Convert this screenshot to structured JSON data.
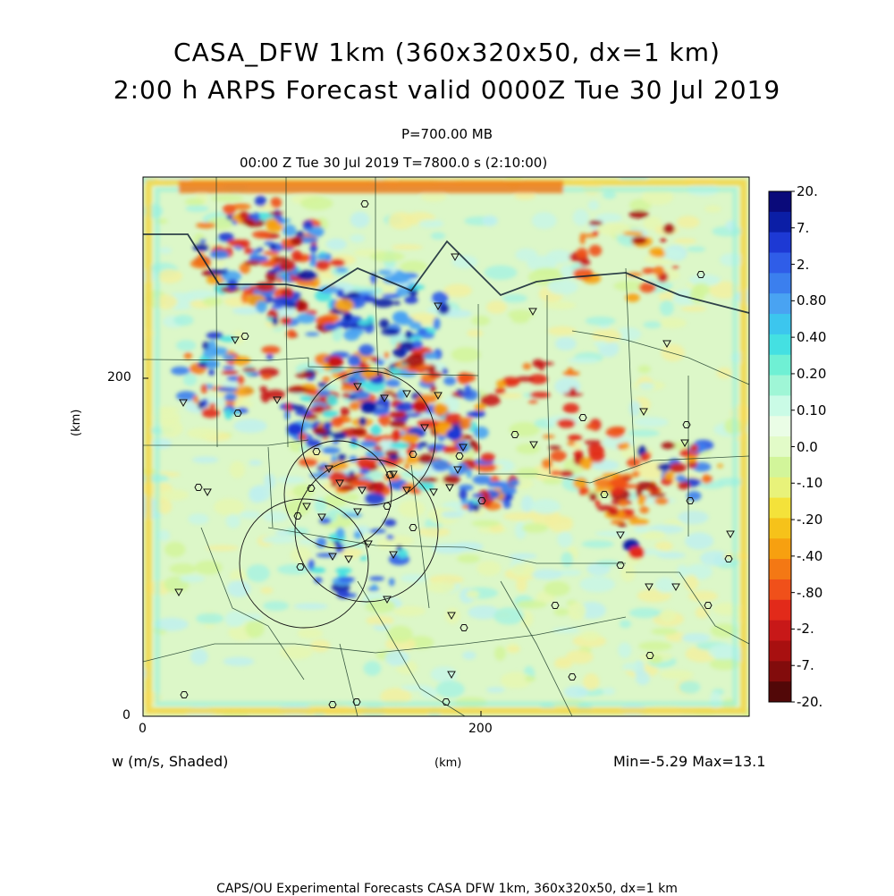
{
  "title_line1": "CASA_DFW 1km (360x320x50, dx=1 km)",
  "title_line2": "2:00 h ARPS Forecast valid 0000Z Tue 30 Jul 2019",
  "subtitle_level": "P=700.00 MB",
  "subtitle_time": "00:00 Z Tue 30 Jul 2019    T=7800.0 s (2:10:00)",
  "variable_label": "w (m/s, Shaded)",
  "minmax_label": "Min=-5.29 Max=13.1",
  "footer": "CAPS/OU Experimental Forecasts  CASA DFW 1km, 360x320x50, dx=1 km",
  "chart_data": {
    "type": "heatmap",
    "field": "w (m/s)",
    "level": "700.00 MB",
    "xlabel": "(km)",
    "ylabel": "(km)",
    "x_ticks": [
      "0",
      "200"
    ],
    "y_ticks": [
      "0",
      "200"
    ],
    "xlim": [
      0,
      360
    ],
    "ylim": [
      0,
      320
    ],
    "min": -5.29,
    "max": 13.1,
    "colorbar": {
      "labels": [
        "20.",
        "7.",
        "2.",
        "0.80",
        "0.40",
        "0.20",
        "0.10",
        "0.0",
        "-.10",
        "-.20",
        "-.40",
        "-.80",
        "-2.",
        "-7.",
        "-20."
      ],
      "colors": [
        "#0a0a7a",
        "#0b1ea6",
        "#1d39d4",
        "#2f5de8",
        "#3b7fee",
        "#49a3f2",
        "#3cc6ee",
        "#44e0e2",
        "#6ff0d4",
        "#9ff6d6",
        "#cafbe6",
        "#eafde6",
        "#e2fbc8",
        "#d2f59a",
        "#e8f27a",
        "#f4e23a",
        "#f6c21a",
        "#f7a010",
        "#f47814",
        "#f0501a",
        "#e22a1a",
        "#c81818",
        "#a81010",
        "#820c0c",
        "#520808"
      ]
    }
  }
}
